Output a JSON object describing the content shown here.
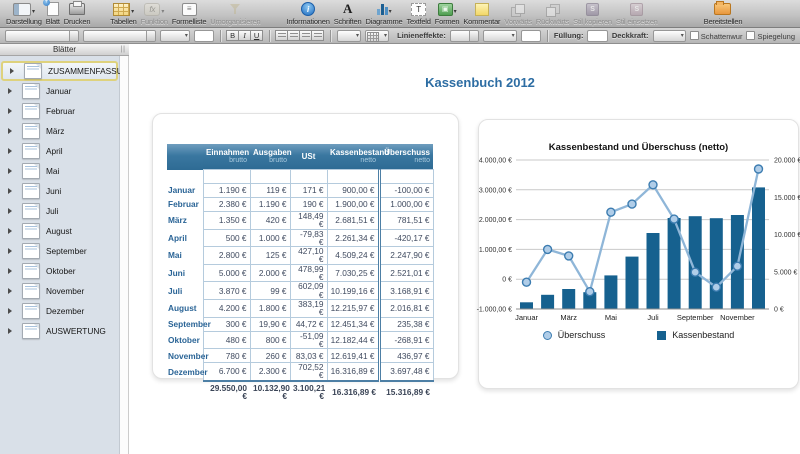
{
  "toolbar": {
    "items": [
      {
        "label": "Darstellung",
        "icon": "view-icon",
        "enabled": true,
        "dropdown": true
      },
      {
        "label": "Blatt",
        "icon": "new-sheet-icon",
        "enabled": true,
        "dropdown": false
      },
      {
        "label": "Drucken",
        "icon": "print-icon",
        "enabled": true,
        "dropdown": false
      },
      {
        "label": "Tabellen",
        "icon": "tables-icon",
        "enabled": true,
        "dropdown": true
      },
      {
        "label": "Funktion",
        "icon": "function-icon",
        "enabled": false,
        "dropdown": true
      },
      {
        "label": "Formelliste",
        "icon": "formula-list-icon",
        "enabled": true,
        "dropdown": false
      },
      {
        "label": "Umorganisieren",
        "icon": "reorganize-icon",
        "enabled": false,
        "dropdown": false
      },
      {
        "label": "Informationen",
        "icon": "info-icon",
        "enabled": true,
        "dropdown": false
      },
      {
        "label": "Schriften",
        "icon": "fonts-icon",
        "enabled": true,
        "dropdown": false
      },
      {
        "label": "Diagramme",
        "icon": "charts-icon",
        "enabled": true,
        "dropdown": true
      },
      {
        "label": "Textfeld",
        "icon": "textbox-icon",
        "enabled": true,
        "dropdown": false
      },
      {
        "label": "Formen",
        "icon": "shapes-icon",
        "enabled": true,
        "dropdown": true
      },
      {
        "label": "Kommentar",
        "icon": "comment-icon",
        "enabled": true,
        "dropdown": false
      },
      {
        "label": "Vorwärts",
        "icon": "forward-icon",
        "enabled": false,
        "dropdown": false
      },
      {
        "label": "Rückwärts",
        "icon": "backward-icon",
        "enabled": false,
        "dropdown": false
      },
      {
        "label": "Stil kopieren",
        "icon": "copy-style-icon",
        "enabled": false,
        "dropdown": false
      },
      {
        "label": "Stil einsetzen",
        "icon": "paste-style-icon",
        "enabled": false,
        "dropdown": false
      },
      {
        "label": "Bereitstellen",
        "icon": "share-icon",
        "enabled": true,
        "dropdown": false
      }
    ]
  },
  "format_bar": {
    "bold": "B",
    "italic": "I",
    "underline": "U",
    "line_effects_label": "Linieneffekte:",
    "fill_label": "Füllung:",
    "opacity_label": "Deckkraft:",
    "shadow_checkbox_label": "Schattenwur",
    "reflection_checkbox_label": "Spiegelung"
  },
  "sidebar": {
    "header": "Blätter",
    "items": [
      {
        "label": "ZUSAMMENFASSUNG",
        "selected": true
      },
      {
        "label": "Januar",
        "selected": false
      },
      {
        "label": "Februar",
        "selected": false
      },
      {
        "label": "März",
        "selected": false
      },
      {
        "label": "April",
        "selected": false
      },
      {
        "label": "Mai",
        "selected": false
      },
      {
        "label": "Juni",
        "selected": false
      },
      {
        "label": "Juli",
        "selected": false
      },
      {
        "label": "August",
        "selected": false
      },
      {
        "label": "September",
        "selected": false
      },
      {
        "label": "Oktober",
        "selected": false
      },
      {
        "label": "November",
        "selected": false
      },
      {
        "label": "Dezember",
        "selected": false
      },
      {
        "label": "AUSWERTUNG",
        "selected": false
      }
    ]
  },
  "document": {
    "title": "Kassenbuch 2012",
    "table": {
      "columns": [
        {
          "label": "Einnahmen",
          "sublabel": "brutto"
        },
        {
          "label": "Ausgaben",
          "sublabel": "brutto"
        },
        {
          "label": "USt",
          "sublabel": ""
        },
        {
          "label": "Kassenbestand",
          "sublabel": "netto"
        },
        {
          "label": "Überschuss",
          "sublabel": "netto"
        }
      ],
      "rows": [
        {
          "label": "Januar",
          "values": [
            "1.190 €",
            "119 €",
            "171 €",
            "900,00 €",
            "-100,00 €"
          ]
        },
        {
          "label": "Februar",
          "values": [
            "2.380 €",
            "1.190 €",
            "190 €",
            "1.900,00 €",
            "1.000,00 €"
          ]
        },
        {
          "label": "März",
          "values": [
            "1.350 €",
            "420 €",
            "148,49 €",
            "2.681,51 €",
            "781,51 €"
          ]
        },
        {
          "label": "April",
          "values": [
            "500 €",
            "1.000 €",
            "-79,83 €",
            "2.261,34 €",
            "-420,17 €"
          ]
        },
        {
          "label": "Mai",
          "values": [
            "2.800 €",
            "125 €",
            "427,10 €",
            "4.509,24 €",
            "2.247,90 €"
          ]
        },
        {
          "label": "Juni",
          "values": [
            "5.000 €",
            "2.000 €",
            "478,99 €",
            "7.030,25 €",
            "2.521,01 €"
          ]
        },
        {
          "label": "Juli",
          "values": [
            "3.870 €",
            "99 €",
            "602,09 €",
            "10.199,16 €",
            "3.168,91 €"
          ]
        },
        {
          "label": "August",
          "values": [
            "4.200 €",
            "1.800 €",
            "383,19 €",
            "12.215,97 €",
            "2.016,81 €"
          ]
        },
        {
          "label": "September",
          "values": [
            "300 €",
            "19,90 €",
            "44,72 €",
            "12.451,34 €",
            "235,38 €"
          ]
        },
        {
          "label": "Oktober",
          "values": [
            "480 €",
            "800 €",
            "-51,09 €",
            "12.182,44 €",
            "-268,91 €"
          ]
        },
        {
          "label": "November",
          "values": [
            "780 €",
            "260 €",
            "83,03 €",
            "12.619,41 €",
            "436,97 €"
          ]
        },
        {
          "label": "Dezember",
          "values": [
            "6.700 €",
            "2.300 €",
            "702,52 €",
            "16.316,89 €",
            "3.697,48 €"
          ]
        }
      ],
      "totals": [
        "29.550,00 €",
        "10.132,90 €",
        "3.100,21 €",
        "16.316,89 €",
        "15.316,89 €"
      ]
    }
  },
  "chart_data": {
    "type": "bar",
    "title": "Kassenbestand und Überschuss (netto)",
    "categories": [
      "Januar",
      "Februar",
      "März",
      "April",
      "Mai",
      "Juni",
      "Juli",
      "August",
      "September",
      "Oktober",
      "November",
      "Dezember"
    ],
    "x_tick_labels": [
      "Januar",
      "März",
      "Mai",
      "Juli",
      "September",
      "November"
    ],
    "series": [
      {
        "name": "Kassenbestand",
        "type": "bar",
        "axis": "right",
        "color": "#16618f",
        "values": [
          900.0,
          1900.0,
          2681.51,
          2261.34,
          4509.24,
          7030.25,
          10199.16,
          12215.97,
          12451.34,
          12182.44,
          12619.41,
          16316.89
        ]
      },
      {
        "name": "Überschuss",
        "type": "line",
        "axis": "left",
        "color": "#8fb6d8",
        "values": [
          -100.0,
          1000.0,
          781.51,
          -420.17,
          2247.9,
          2521.01,
          3168.91,
          2016.81,
          235.38,
          -268.91,
          436.97,
          3697.48
        ]
      }
    ],
    "left_axis": {
      "min": -1000,
      "max": 4000,
      "step": 1000,
      "tick_labels": [
        "4.000,00 €",
        "3.000,00 €",
        "2.000,00 €",
        "1.000,00 €",
        "0 €",
        "-1.000,00 €"
      ]
    },
    "right_axis": {
      "min": 0,
      "max": 20000,
      "step": 5000,
      "tick_labels": [
        "20.000 €",
        "15.000 €",
        "10.000 €",
        "5.000 €",
        "0 €"
      ]
    },
    "legend": [
      {
        "label": "Überschuss",
        "marker": "circle"
      },
      {
        "label": "Kassenbestand",
        "marker": "square"
      }
    ],
    "grid": true,
    "legend_position": "bottom"
  }
}
